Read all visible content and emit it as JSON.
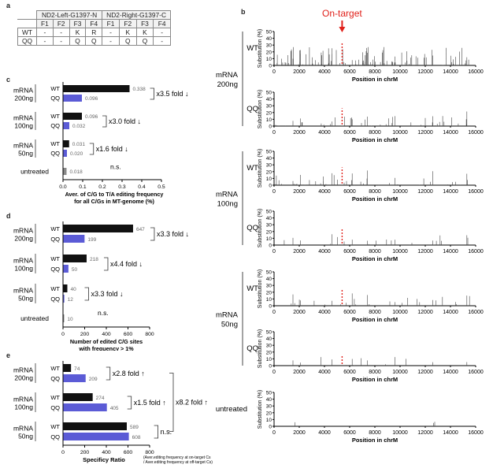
{
  "panel_labels": {
    "a": "a",
    "b": "b",
    "c": "c",
    "d": "d",
    "e": "e"
  },
  "table_a": {
    "groups": [
      "ND2-Left-G1397-N",
      "ND2-Right-G1397-C"
    ],
    "cols": [
      "F1",
      "F2",
      "F3",
      "F4",
      "F1",
      "F2",
      "F3",
      "F4"
    ],
    "rows": [
      {
        "label": "WT",
        "cells": [
          "-",
          "-",
          "K",
          "R",
          "-",
          "K",
          "K",
          "-"
        ]
      },
      {
        "label": "QQ",
        "cells": [
          "-",
          "-",
          "Q",
          "Q",
          "-",
          "Q",
          "Q",
          "-"
        ]
      }
    ]
  },
  "bar_c": {
    "xlabel_lines": [
      "Aver. of C/G to T/A editing frequency",
      "for all C/Gs in MT-genome (%)"
    ],
    "ticks": [
      "0.0",
      "0.1",
      "0.2",
      "0.3",
      "0.4",
      "0.5"
    ],
    "groups": [
      {
        "title": "mRNA",
        "subtitle": "200ng",
        "bars": [
          {
            "label": "WT",
            "value": 0.338,
            "text": "0.338",
            "color": "#111111"
          },
          {
            "label": "QQ",
            "value": 0.096,
            "text": "0.096",
            "color": "#5b5bd6"
          }
        ],
        "fold": "x3.5 fold ↓"
      },
      {
        "title": "mRNA",
        "subtitle": "100ng",
        "bars": [
          {
            "label": "WT",
            "value": 0.096,
            "text": "0.096",
            "color": "#111111"
          },
          {
            "label": "QQ",
            "value": 0.032,
            "text": "0.032",
            "color": "#5b5bd6"
          }
        ],
        "fold": "x3.0 fold ↓"
      },
      {
        "title": "mRNA",
        "subtitle": "50ng",
        "bars": [
          {
            "label": "WT",
            "value": 0.031,
            "text": "0.031",
            "color": "#111111"
          },
          {
            "label": "QQ",
            "value": 0.02,
            "text": "0.020",
            "color": "#5b5bd6"
          }
        ],
        "fold": "x1.6 fold ↓",
        "ns": "n.s."
      },
      {
        "title": "untreated",
        "subtitle": "",
        "bars": [
          {
            "label": "",
            "value": 0.018,
            "text": "0.018",
            "color": "#888888"
          }
        ]
      }
    ]
  },
  "bar_d": {
    "xlabel_lines": [
      "Number of edited C/G sites",
      "with frequency > 1%"
    ],
    "ticks": [
      "0",
      "200",
      "400",
      "600",
      "800"
    ],
    "groups": [
      {
        "title": "mRNA",
        "subtitle": "200ng",
        "bars": [
          {
            "label": "WT",
            "value": 647,
            "text": "647",
            "color": "#111111"
          },
          {
            "label": "QQ",
            "value": 199,
            "text": "199",
            "color": "#5b5bd6"
          }
        ],
        "fold": "x3.3 fold ↓"
      },
      {
        "title": "mRNA",
        "subtitle": "100ng",
        "bars": [
          {
            "label": "WT",
            "value": 218,
            "text": "218",
            "color": "#111111"
          },
          {
            "label": "QQ",
            "value": 50,
            "text": "50",
            "color": "#5b5bd6"
          }
        ],
        "fold": "x4.4 fold ↓"
      },
      {
        "title": "mRNA",
        "subtitle": "50ng",
        "bars": [
          {
            "label": "WT",
            "value": 40,
            "text": "40",
            "color": "#111111"
          },
          {
            "label": "QQ",
            "value": 12,
            "text": "12",
            "color": "#5b5bd6"
          }
        ],
        "fold": "x3.3 fold ↓",
        "ns": "n.s."
      },
      {
        "title": "untreated",
        "subtitle": "",
        "bars": [
          {
            "label": "",
            "value": 10,
            "text": "10",
            "color": "#888888"
          }
        ]
      }
    ]
  },
  "bar_e": {
    "xlabel": "Specificy Ratio",
    "note_lines": [
      "(Aver.editing frequency at on-target Cs",
      "/ Aver.editing frequency at off-target Cs)"
    ],
    "ticks": [
      "0",
      "200",
      "400",
      "600",
      "800"
    ],
    "groups": [
      {
        "title": "mRNA",
        "subtitle": "200ng",
        "bars": [
          {
            "label": "WT",
            "value": 74,
            "text": "74",
            "color": "#111111"
          },
          {
            "label": "QQ",
            "value": 209,
            "text": "209",
            "color": "#5b5bd6"
          }
        ],
        "fold": "x2.8 fold ↑"
      },
      {
        "title": "mRNA",
        "subtitle": "100ng",
        "bars": [
          {
            "label": "WT",
            "value": 274,
            "text": "274",
            "color": "#111111"
          },
          {
            "label": "QQ",
            "value": 405,
            "text": "405",
            "color": "#5b5bd6"
          }
        ],
        "fold": "x1.5 fold ↑"
      },
      {
        "title": "mRNA",
        "subtitle": "50ng",
        "bars": [
          {
            "label": "WT",
            "value": 589,
            "text": "589",
            "color": "#111111"
          },
          {
            "label": "QQ",
            "value": 608,
            "text": "608",
            "color": "#5b5bd6"
          }
        ],
        "ns": "n.s."
      }
    ],
    "outer_fold": "x8.2 fold ↑"
  },
  "chart_b": {
    "on_target_label": "On-target",
    "ylabel": "Substitution (%)",
    "xlabel": "Position in chrM",
    "xticks": [
      "0",
      "2000",
      "4000",
      "6000",
      "8000",
      "10000",
      "12000",
      "14000",
      "16000"
    ],
    "yticks": [
      "0",
      "10",
      "20",
      "30",
      "40",
      "50"
    ],
    "on_target_position": 5400,
    "dose_labels": [
      [
        "mRNA",
        "200ng"
      ],
      [
        "mRNA",
        "100ng"
      ],
      [
        "mRNA",
        "50ng"
      ]
    ],
    "panels": [
      {
        "label": "WT",
        "density": "high"
      },
      {
        "label": "QQ",
        "density": "mid"
      },
      {
        "label": "WT",
        "density": "mid"
      },
      {
        "label": "QQ",
        "density": "low"
      },
      {
        "label": "WT",
        "density": "low"
      },
      {
        "label": "QQ",
        "density": "vlow"
      },
      {
        "label": "untreated",
        "density": "none"
      }
    ]
  },
  "chart_data": [
    {
      "type": "bar",
      "title": "",
      "xlabel": "Aver. of C/G to T/A editing frequency for all C/Gs in MT-genome (%)",
      "categories": [
        "mRNA 200ng WT",
        "mRNA 200ng QQ",
        "mRNA 100ng WT",
        "mRNA 100ng QQ",
        "mRNA 50ng WT",
        "mRNA 50ng QQ",
        "untreated"
      ],
      "values": [
        0.338,
        0.096,
        0.096,
        0.032,
        0.031,
        0.02,
        0.018
      ],
      "xlim": [
        0,
        0.5
      ]
    },
    {
      "type": "bar",
      "title": "",
      "xlabel": "Number of edited C/G sites with frequency > 1%",
      "categories": [
        "mRNA 200ng WT",
        "mRNA 200ng QQ",
        "mRNA 100ng WT",
        "mRNA 100ng QQ",
        "mRNA 50ng WT",
        "mRNA 50ng QQ",
        "untreated"
      ],
      "values": [
        647,
        199,
        218,
        50,
        40,
        12,
        10
      ],
      "xlim": [
        0,
        800
      ]
    },
    {
      "type": "bar",
      "title": "",
      "xlabel": "Specificy Ratio",
      "categories": [
        "mRNA 200ng WT",
        "mRNA 200ng QQ",
        "mRNA 100ng WT",
        "mRNA 100ng QQ",
        "mRNA 50ng WT",
        "mRNA 50ng QQ"
      ],
      "values": [
        74,
        209,
        274,
        405,
        589,
        608
      ],
      "xlim": [
        0,
        800
      ]
    },
    {
      "type": "scatter",
      "title": "",
      "xlabel": "Position in chrM",
      "ylabel": "Substitution (%)",
      "xlim": [
        0,
        16000
      ],
      "ylim": [
        0,
        50
      ],
      "series": [
        {
          "name": "WT",
          "values": []
        },
        {
          "name": "QQ",
          "values": []
        }
      ]
    }
  ],
  "colors": {
    "wt": "#111111",
    "qq": "#5b5bd6",
    "untreated": "#888888",
    "on_target": "#e0201a"
  }
}
